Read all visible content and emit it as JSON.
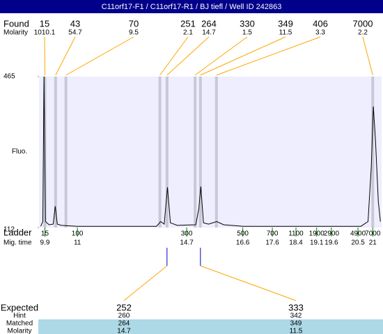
{
  "header": {
    "title": "C11orf17-F1 / C11orf17-R1 / BJ tiefl / Well ID 242863"
  },
  "chart_data": {
    "type": "line",
    "y_label": "Fluo.",
    "ylim": [
      112,
      465
    ],
    "yticks": [
      112,
      465
    ],
    "xlim": [
      9.7,
      21.3
    ],
    "x": [
      9.76,
      9.83,
      9.87,
      9.92,
      10.04,
      10.18,
      10.25,
      10.32,
      10.46,
      10.98,
      13.68,
      13.82,
      13.94,
      14.05,
      14.15,
      14.38,
      15.01,
      15.11,
      15.18,
      15.27,
      15.44,
      15.72,
      15.95,
      16.61,
      20.6,
      20.84,
      20.95,
      21.02,
      21.09,
      21.19,
      21.26
    ],
    "series": [
      {
        "color": "#000000",
        "values": [
          115,
          126,
          472,
          126,
          118.5,
          120,
          162,
          120,
          117,
          115,
          115,
          126,
          120,
          206,
          123,
          117,
          118.5,
          156,
          208,
          123,
          120,
          126,
          118.5,
          115,
          115,
          126,
          255,
          395,
          320,
          172,
          126
        ]
      }
    ]
  },
  "found": {
    "label": "Found",
    "molarity_label": "Molarity",
    "sizes": [
      15,
      43,
      70,
      251,
      264,
      330,
      349,
      406,
      7000
    ],
    "molarity": [
      1010.1,
      54.7,
      9.5,
      2.1,
      14.7,
      1.5,
      11.5,
      3.3,
      2.2
    ]
  },
  "ladder": {
    "label": "Ladder",
    "mig_time_label": "Mig. time",
    "sizes": [
      15,
      100,
      300,
      500,
      700,
      1100,
      1900,
      2900,
      4900,
      7000
    ],
    "mig_times": [
      9.9,
      11,
      14.7,
      16.6,
      17.6,
      18.4,
      19.1,
      19.6,
      20.5,
      21
    ]
  },
  "expected": {
    "expected_label": "Expected",
    "hint_label": "Hint",
    "matched_label": "Matched",
    "molarity_label": "Molarity",
    "expected": [
      252,
      333
    ],
    "hint": [
      260,
      342
    ],
    "matched": [
      264,
      349
    ],
    "molarity": [
      14.7,
      11.5
    ]
  }
}
